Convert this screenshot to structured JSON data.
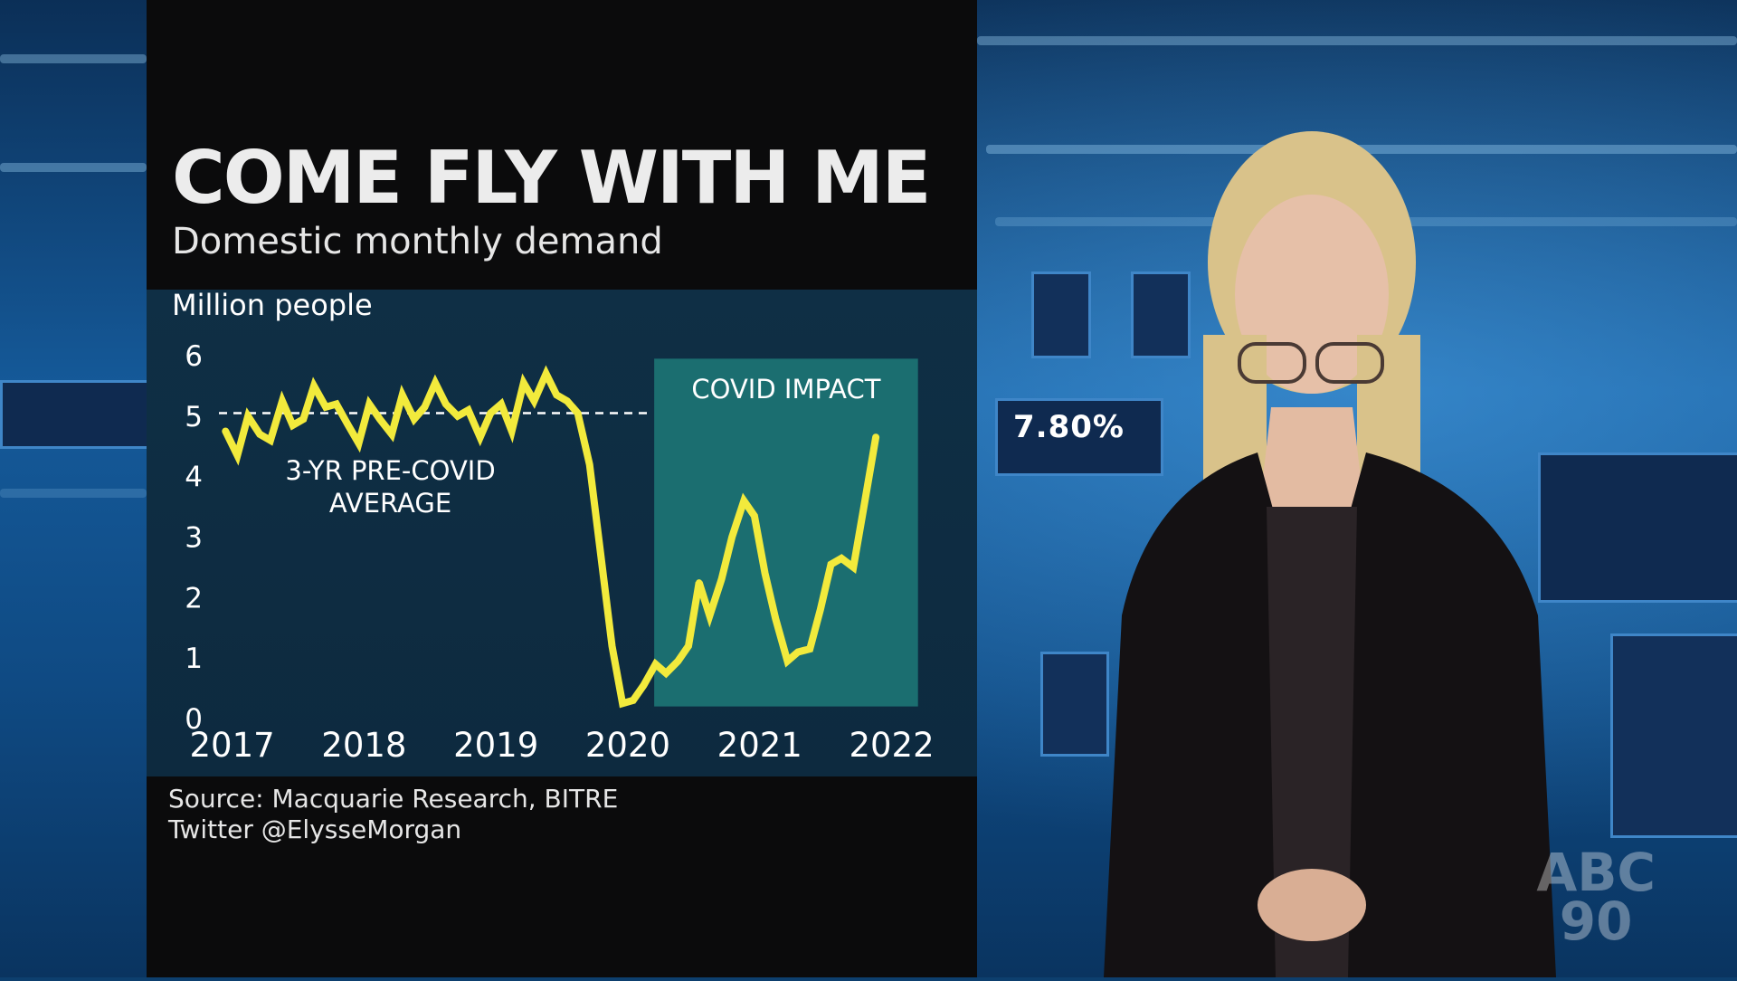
{
  "chart_data": {
    "type": "line",
    "title": "COME FLY WITH ME",
    "subtitle": "Domestic monthly demand",
    "ylabel": "Million people",
    "ylim": [
      0,
      6
    ],
    "xlim": [
      2016.9,
      2022.25
    ],
    "yticks": [
      "0",
      "1",
      "2",
      "3",
      "4",
      "5",
      "6"
    ],
    "xticks": [
      {
        "label": "2017",
        "x": 2017.0
      },
      {
        "label": "2018",
        "x": 2018.0
      },
      {
        "label": "2019",
        "x": 2019.0
      },
      {
        "label": "2020",
        "x": 2020.0
      },
      {
        "label": "2021",
        "x": 2021.0
      },
      {
        "label": "2022",
        "x": 2022.0
      }
    ],
    "reference_line": {
      "label": "3-YR PRE-COVID AVERAGE",
      "label_lines": [
        "3-YR PRE-COVID",
        "AVERAGE"
      ],
      "value": 5.05,
      "x_start": 2016.9,
      "x_end": 2020.15
    },
    "shaded_region": {
      "label": "COVID IMPACT",
      "x_start": 2020.2,
      "x_end": 2022.2
    },
    "grid": false,
    "series": [
      {
        "values": [
          {
            "x": 2016.95,
            "y": 4.75
          },
          {
            "x": 2017.04,
            "y": 4.35
          },
          {
            "x": 2017.12,
            "y": 5.0
          },
          {
            "x": 2017.21,
            "y": 4.7
          },
          {
            "x": 2017.29,
            "y": 4.6
          },
          {
            "x": 2017.38,
            "y": 5.25
          },
          {
            "x": 2017.46,
            "y": 4.85
          },
          {
            "x": 2017.54,
            "y": 4.95
          },
          {
            "x": 2017.62,
            "y": 5.5
          },
          {
            "x": 2017.71,
            "y": 5.15
          },
          {
            "x": 2017.79,
            "y": 5.2
          },
          {
            "x": 2017.88,
            "y": 4.85
          },
          {
            "x": 2017.96,
            "y": 4.55
          },
          {
            "x": 2018.04,
            "y": 5.2
          },
          {
            "x": 2018.12,
            "y": 4.95
          },
          {
            "x": 2018.21,
            "y": 4.7
          },
          {
            "x": 2018.29,
            "y": 5.35
          },
          {
            "x": 2018.38,
            "y": 4.95
          },
          {
            "x": 2018.46,
            "y": 5.15
          },
          {
            "x": 2018.54,
            "y": 5.55
          },
          {
            "x": 2018.62,
            "y": 5.2
          },
          {
            "x": 2018.71,
            "y": 5.0
          },
          {
            "x": 2018.79,
            "y": 5.1
          },
          {
            "x": 2018.88,
            "y": 4.65
          },
          {
            "x": 2018.96,
            "y": 5.05
          },
          {
            "x": 2019.04,
            "y": 5.2
          },
          {
            "x": 2019.12,
            "y": 4.75
          },
          {
            "x": 2019.21,
            "y": 5.55
          },
          {
            "x": 2019.29,
            "y": 5.25
          },
          {
            "x": 2019.38,
            "y": 5.7
          },
          {
            "x": 2019.46,
            "y": 5.35
          },
          {
            "x": 2019.54,
            "y": 5.25
          },
          {
            "x": 2019.62,
            "y": 5.05
          },
          {
            "x": 2019.71,
            "y": 4.2
          },
          {
            "x": 2019.79,
            "y": 2.8
          },
          {
            "x": 2019.88,
            "y": 1.2
          },
          {
            "x": 2019.96,
            "y": 0.25
          },
          {
            "x": 2020.04,
            "y": 0.3
          },
          {
            "x": 2020.12,
            "y": 0.55
          },
          {
            "x": 2020.21,
            "y": 0.9
          },
          {
            "x": 2020.29,
            "y": 0.75
          },
          {
            "x": 2020.38,
            "y": 0.95
          },
          {
            "x": 2020.46,
            "y": 1.2
          },
          {
            "x": 2020.54,
            "y": 2.25
          },
          {
            "x": 2020.62,
            "y": 1.7
          },
          {
            "x": 2020.71,
            "y": 2.3
          },
          {
            "x": 2020.79,
            "y": 3.0
          },
          {
            "x": 2020.88,
            "y": 3.6
          },
          {
            "x": 2020.96,
            "y": 3.35
          },
          {
            "x": 2021.04,
            "y": 2.4
          },
          {
            "x": 2021.12,
            "y": 1.65
          },
          {
            "x": 2021.21,
            "y": 0.95
          },
          {
            "x": 2021.29,
            "y": 1.1
          },
          {
            "x": 2021.38,
            "y": 1.15
          },
          {
            "x": 2021.46,
            "y": 1.8
          },
          {
            "x": 2021.54,
            "y": 2.55
          },
          {
            "x": 2021.62,
            "y": 2.65
          },
          {
            "x": 2021.71,
            "y": 2.5
          },
          {
            "x": 2021.79,
            "y": 3.5
          },
          {
            "x": 2021.88,
            "y": 4.65
          }
        ]
      }
    ],
    "line_color": "#f2ea3c",
    "region_color": "#1b6e70"
  },
  "source_lines": [
    "Source: Macquarie Research, BITRE",
    "Twitter @ElysseMorgan"
  ],
  "backdrop": {
    "ticker": [
      "7.80%"
    ],
    "watermark": [
      "ABC",
      "90"
    ]
  }
}
